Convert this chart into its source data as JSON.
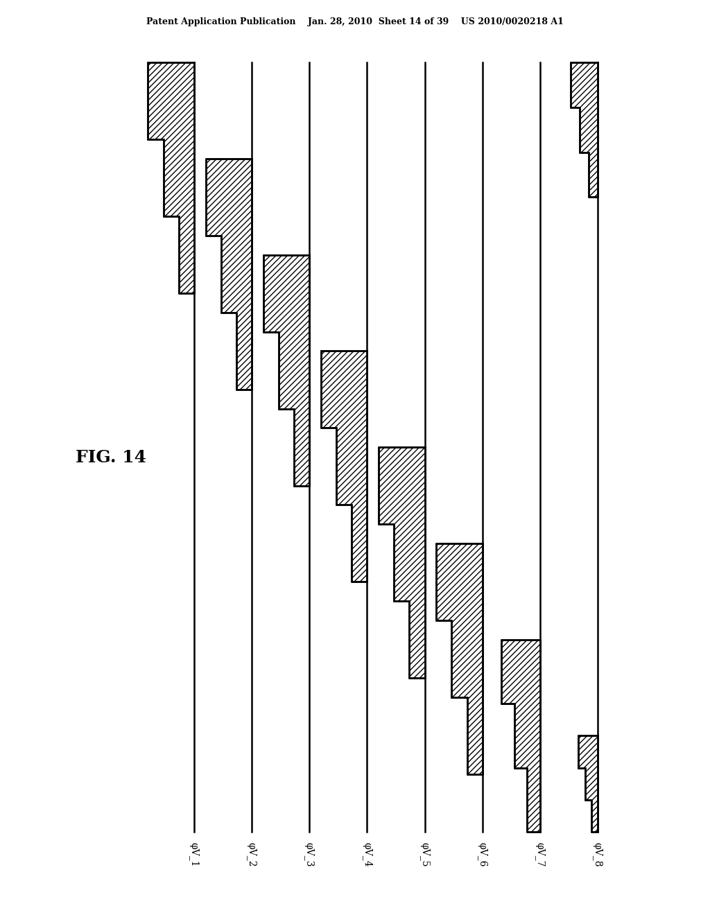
{
  "title_header": "Patent Application Publication    Jan. 28, 2010  Sheet 14 of 39    US 2010/0020218 A1",
  "fig_label": "FIG. 14",
  "signal_labels": [
    "φV_1",
    "φV_2",
    "φV_3",
    "φV_4",
    "φV_5",
    "φV_6",
    "φV_7",
    "φV_8"
  ],
  "n_signals": 8,
  "background_color": "#ffffff",
  "line_color": "#000000",
  "hatch_color": "#000000",
  "hatch_pattern": "////",
  "line_width": 1.8,
  "header_fontsize": 9,
  "label_fontsize": 10,
  "fig_label_fontsize": 18
}
